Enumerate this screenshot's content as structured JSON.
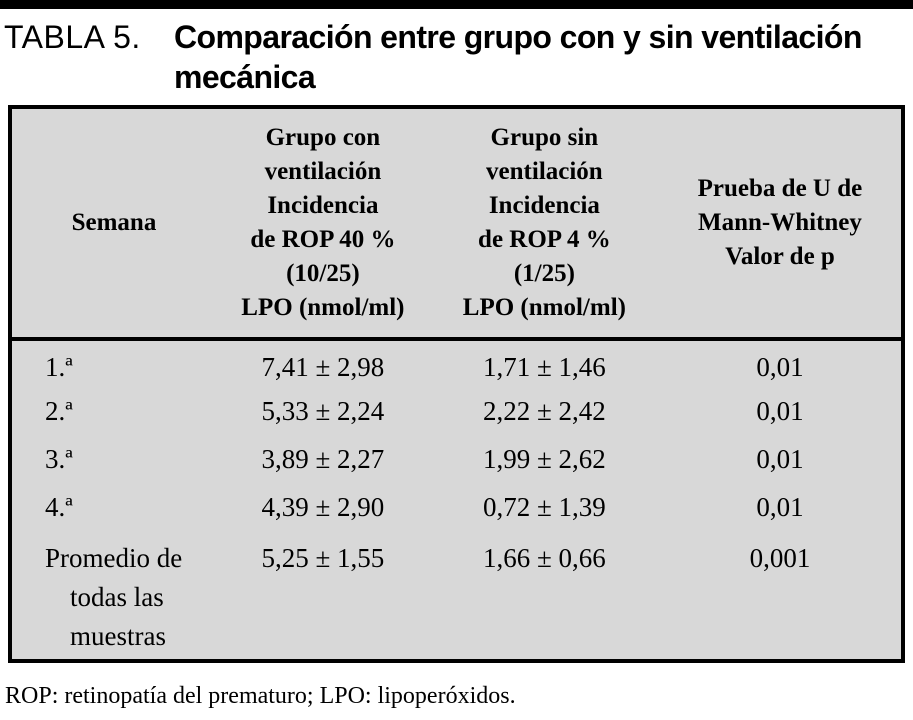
{
  "title": {
    "label": "TABLA 5.",
    "text": "Comparación entre grupo con y sin ventilación mecánica"
  },
  "table": {
    "headers": {
      "semana": "Semana",
      "grupo_con": "Grupo con\nventilación\nIncidencia\nde ROP 40 %\n(10/25)\nLPO (nmol/ml)",
      "grupo_sin": "Grupo sin\nventilación\nIncidencia\nde ROP 4 %\n(1/25)\nLPO (nmol/ml)",
      "prueba": "Prueba de U de\nMann-Whitney\nValor de p"
    },
    "rows": [
      {
        "semana": "1.ª",
        "grupo_con": "7,41 ± 2,98",
        "grupo_sin": "1,71 ± 1,46",
        "p": "0,01"
      },
      {
        "semana": "2.ª",
        "grupo_con": "5,33 ± 2,24",
        "grupo_sin": "2,22 ± 2,42",
        "p": "0,01"
      },
      {
        "semana": "3.ª",
        "grupo_con": "3,89 ± 2,27",
        "grupo_sin": "1,99 ± 2,62",
        "p": "0,01"
      },
      {
        "semana": "4.ª",
        "grupo_con": "4,39 ± 2,90",
        "grupo_sin": "0,72 ± 1,39",
        "p": "0,01"
      },
      {
        "semana": "Promedio de\ntodas las\nmuestras",
        "grupo_con": "5,25 ± 1,55",
        "grupo_sin": "1,66 ± 0,66",
        "p": "0,001"
      }
    ]
  },
  "footnote": "ROP: retinopatía del prematuro; LPO: lipoperóxidos.",
  "colors": {
    "table_background": "#d8d8d8",
    "rule": "#000000",
    "text": "#000000"
  }
}
